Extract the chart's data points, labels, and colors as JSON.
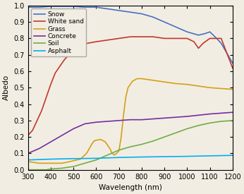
{
  "xlabel": "Wavelength (nm)",
  "ylabel": "Albedo",
  "xlim": [
    300,
    1200
  ],
  "ylim": [
    0,
    1.0
  ],
  "xticks": [
    300,
    400,
    500,
    600,
    700,
    800,
    900,
    1000,
    1100,
    1200
  ],
  "yticks": [
    0,
    0.1,
    0.2,
    0.3,
    0.4,
    0.5,
    0.6,
    0.7,
    0.8,
    0.9,
    1.0
  ],
  "legend_labels": [
    "Snow",
    "White sand",
    "Grass",
    "Concrete",
    "Soil",
    "Asphalt"
  ],
  "line_colors": [
    "#4472c4",
    "#c0392b",
    "#d4a017",
    "#7030a0",
    "#70ad47",
    "#00b0f0"
  ],
  "linewidths": [
    1.2,
    1.2,
    1.2,
    1.2,
    1.2,
    1.2
  ],
  "bg_color": "#f2ede3",
  "snow": {
    "wavelengths": [
      300,
      350,
      400,
      450,
      500,
      550,
      600,
      650,
      700,
      750,
      800,
      850,
      900,
      950,
      1000,
      1050,
      1080,
      1100,
      1130,
      1150,
      1200
    ],
    "albedo": [
      0.99,
      0.99,
      0.995,
      0.995,
      0.995,
      0.99,
      0.99,
      0.98,
      0.97,
      0.96,
      0.95,
      0.93,
      0.9,
      0.87,
      0.84,
      0.82,
      0.83,
      0.84,
      0.8,
      0.77,
      0.65
    ]
  },
  "white_sand": {
    "wavelengths": [
      300,
      320,
      340,
      360,
      380,
      400,
      420,
      440,
      460,
      480,
      500,
      530,
      560,
      600,
      650,
      700,
      750,
      800,
      850,
      900,
      950,
      1000,
      1030,
      1050,
      1070,
      1100,
      1150,
      1200
    ],
    "albedo": [
      0.21,
      0.24,
      0.3,
      0.36,
      0.44,
      0.52,
      0.59,
      0.63,
      0.67,
      0.7,
      0.73,
      0.75,
      0.77,
      0.78,
      0.79,
      0.8,
      0.81,
      0.81,
      0.81,
      0.8,
      0.8,
      0.8,
      0.78,
      0.74,
      0.77,
      0.8,
      0.8,
      0.62
    ]
  },
  "grass": {
    "wavelengths": [
      300,
      350,
      400,
      450,
      500,
      530,
      550,
      560,
      570,
      580,
      590,
      600,
      620,
      640,
      660,
      670,
      680,
      690,
      700,
      710,
      720,
      730,
      740,
      760,
      780,
      800,
      850,
      900,
      950,
      1000,
      1050,
      1100,
      1150,
      1200
    ],
    "albedo": [
      0.05,
      0.04,
      0.04,
      0.04,
      0.055,
      0.065,
      0.09,
      0.105,
      0.13,
      0.155,
      0.175,
      0.18,
      0.185,
      0.17,
      0.13,
      0.1,
      0.09,
      0.1,
      0.115,
      0.2,
      0.33,
      0.44,
      0.5,
      0.54,
      0.555,
      0.555,
      0.545,
      0.535,
      0.525,
      0.52,
      0.51,
      0.5,
      0.495,
      0.49
    ]
  },
  "concrete": {
    "wavelengths": [
      300,
      350,
      400,
      450,
      500,
      550,
      600,
      650,
      700,
      750,
      800,
      900,
      1000,
      1100,
      1200
    ],
    "albedo": [
      0.1,
      0.13,
      0.17,
      0.21,
      0.25,
      0.28,
      0.29,
      0.295,
      0.3,
      0.305,
      0.305,
      0.315,
      0.325,
      0.34,
      0.35
    ]
  },
  "soil": {
    "wavelengths": [
      300,
      350,
      380,
      400,
      450,
      500,
      550,
      600,
      650,
      700,
      750,
      800,
      850,
      900,
      950,
      1000,
      1050,
      1100,
      1150,
      1200
    ],
    "albedo": [
      0.0,
      0.0,
      0.0,
      0.005,
      0.01,
      0.02,
      0.04,
      0.06,
      0.09,
      0.12,
      0.14,
      0.155,
      0.175,
      0.2,
      0.225,
      0.25,
      0.27,
      0.285,
      0.295,
      0.3
    ]
  },
  "asphalt": {
    "wavelengths": [
      300,
      400,
      500,
      600,
      700,
      800,
      900,
      1000,
      1100,
      1200
    ],
    "albedo": [
      0.06,
      0.065,
      0.068,
      0.07,
      0.075,
      0.078,
      0.08,
      0.082,
      0.085,
      0.088
    ]
  }
}
